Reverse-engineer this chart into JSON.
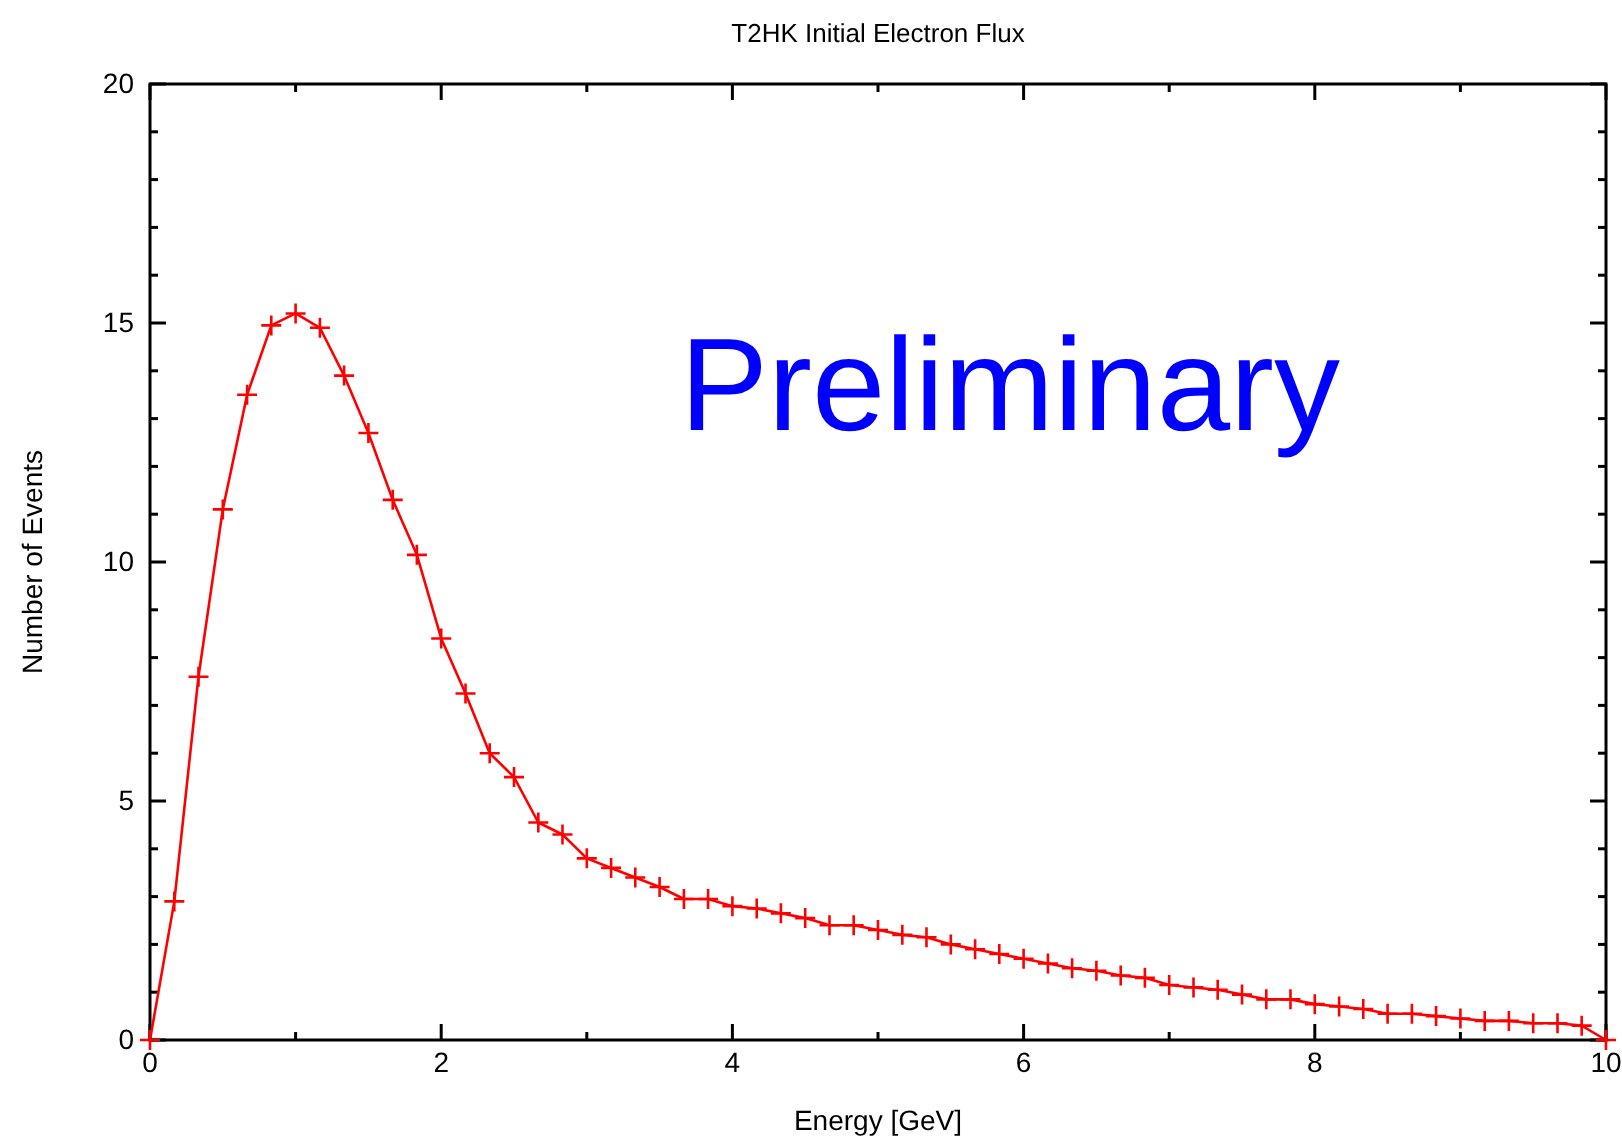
{
  "chart_data": {
    "type": "line",
    "title": "T2HK Initial Electron Flux",
    "xlabel": "Energy [GeV]",
    "ylabel": "Number of Events",
    "annotations": [
      "Preliminary"
    ],
    "x": [
      0,
      0.167,
      0.333,
      0.5,
      0.667,
      0.833,
      1,
      1.167,
      1.333,
      1.5,
      1.667,
      1.833,
      2,
      2.167,
      2.333,
      2.5,
      2.667,
      2.833,
      3,
      3.167,
      3.333,
      3.5,
      3.667,
      3.833,
      4,
      4.167,
      4.333,
      4.5,
      4.667,
      4.833,
      5,
      5.167,
      5.333,
      5.5,
      5.667,
      5.833,
      6,
      6.167,
      6.333,
      6.5,
      6.667,
      6.833,
      7,
      7.167,
      7.333,
      7.5,
      7.667,
      7.833,
      8,
      8.167,
      8.333,
      8.5,
      8.667,
      8.833,
      9,
      9.167,
      9.333,
      9.5,
      9.667,
      9.833,
      10
    ],
    "series": [
      {
        "color": "#ff0000",
        "values": [
          0,
          2.9,
          7.6,
          11.1,
          13.5,
          14.95,
          15.2,
          14.9,
          13.9,
          12.7,
          11.3,
          10.15,
          8.4,
          7.25,
          6.0,
          5.5,
          4.55,
          4.3,
          3.8,
          3.6,
          3.4,
          3.2,
          2.95,
          2.95,
          2.8,
          2.75,
          2.65,
          2.55,
          2.4,
          2.4,
          2.3,
          2.2,
          2.15,
          2.0,
          1.9,
          1.8,
          1.7,
          1.6,
          1.5,
          1.45,
          1.35,
          1.3,
          1.15,
          1.1,
          1.05,
          0.95,
          0.85,
          0.85,
          0.75,
          0.7,
          0.65,
          0.55,
          0.55,
          0.5,
          0.45,
          0.4,
          0.4,
          0.35,
          0.35,
          0.3,
          0
        ]
      }
    ],
    "xlim": [
      0,
      10
    ],
    "ylim": [
      0,
      20
    ],
    "xticks": [
      0,
      {
        "value": 1,
        "label": null
      },
      2,
      {
        "value": 3,
        "label": null
      },
      4,
      {
        "value": 5,
        "label": null
      },
      6,
      {
        "value": 7,
        "label": null
      },
      8,
      {
        "value": 9,
        "label": null
      },
      10
    ],
    "yticks": [
      0,
      {
        "value": 1,
        "label": null
      },
      {
        "value": 2,
        "label": null
      },
      {
        "value": 3,
        "label": null
      },
      {
        "value": 4,
        "label": null
      },
      5,
      {
        "value": 6,
        "label": null
      },
      {
        "value": 7,
        "label": null
      },
      {
        "value": 8,
        "label": null
      },
      {
        "value": 9,
        "label": null
      },
      10,
      {
        "value": 11,
        "label": null
      },
      {
        "value": 12,
        "label": null
      },
      {
        "value": 13,
        "label": null
      },
      {
        "value": 14,
        "label": null
      },
      15,
      {
        "value": 16,
        "label": null
      },
      {
        "value": 17,
        "label": null
      },
      {
        "value": 18,
        "label": null
      },
      {
        "value": 19,
        "label": null
      },
      20
    ],
    "marker": "cross",
    "line_style": "solid"
  }
}
